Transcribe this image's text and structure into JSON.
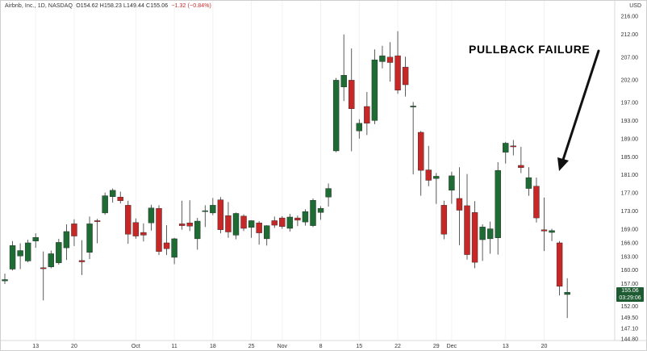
{
  "legend": {
    "symbol": "Airbnb, Inc., 1D, NASDAQ",
    "ohlc": "O154.62 H158.23 L149.44 C155.06",
    "change": "−1.32 (−0.84%)"
  },
  "currency": "USD",
  "annotation": {
    "text": "PULLBACK FAILURE"
  },
  "last_price": {
    "price": "155.06",
    "countdown": "03:29:06"
  },
  "colors": {
    "up": "#1e6b34",
    "down": "#c62828",
    "wick": "#333333",
    "badge": "#1e5b32",
    "axis_text": "#333333"
  },
  "chart_data": {
    "type": "candlestick",
    "title": "",
    "xlabel": "",
    "ylabel": "",
    "ylim": [
      144.8,
      218
    ],
    "y_ticks": [
      144.8,
      147.1,
      149.5,
      152.0,
      155.0,
      157.0,
      160.0,
      163.0,
      166.0,
      169.0,
      173.0,
      177.0,
      181.0,
      185.0,
      189.0,
      193.0,
      197.0,
      202.0,
      207.0,
      212.0,
      216.0
    ],
    "x_ticks": [
      {
        "label": "13",
        "index": 4
      },
      {
        "label": "20",
        "index": 9
      },
      {
        "label": "Oct",
        "index": 17
      },
      {
        "label": "11",
        "index": 22
      },
      {
        "label": "18",
        "index": 27
      },
      {
        "label": "25",
        "index": 32
      },
      {
        "label": "Nov",
        "index": 36
      },
      {
        "label": "8",
        "index": 41
      },
      {
        "label": "15",
        "index": 46
      },
      {
        "label": "22",
        "index": 51
      },
      {
        "label": "29",
        "index": 56
      },
      {
        "label": "Dec",
        "index": 58
      },
      {
        "label": "13",
        "index": 65
      },
      {
        "label": "20",
        "index": 70
      }
    ],
    "candles": [
      {
        "o": 157.6,
        "h": 159.2,
        "l": 156.9,
        "c": 157.9
      },
      {
        "o": 160.2,
        "h": 166.4,
        "l": 159.9,
        "c": 165.4
      },
      {
        "o": 163.1,
        "h": 165.9,
        "l": 160.2,
        "c": 164.3
      },
      {
        "o": 162.0,
        "h": 166.7,
        "l": 161.7,
        "c": 166.0
      },
      {
        "o": 166.4,
        "h": 168.1,
        "l": 164.9,
        "c": 167.2
      },
      {
        "o": 160.5,
        "h": 164.1,
        "l": 153.3,
        "c": 160.3
      },
      {
        "o": 160.7,
        "h": 164.3,
        "l": 160.4,
        "c": 163.6
      },
      {
        "o": 161.6,
        "h": 166.9,
        "l": 161.2,
        "c": 166.1
      },
      {
        "o": 164.9,
        "h": 170.1,
        "l": 162.2,
        "c": 168.5
      },
      {
        "o": 170.2,
        "h": 171.2,
        "l": 165.3,
        "c": 167.5
      },
      {
        "o": 162.1,
        "h": 166.6,
        "l": 158.9,
        "c": 161.8
      },
      {
        "o": 163.9,
        "h": 171.8,
        "l": 162.4,
        "c": 170.2
      },
      {
        "o": 170.9,
        "h": 171.3,
        "l": 165.9,
        "c": 170.7
      },
      {
        "o": 172.6,
        "h": 177.1,
        "l": 172.2,
        "c": 176.4
      },
      {
        "o": 176.2,
        "h": 178.0,
        "l": 174.9,
        "c": 177.6
      },
      {
        "o": 176.1,
        "h": 177.3,
        "l": 174.7,
        "c": 175.3
      },
      {
        "o": 174.3,
        "h": 175.3,
        "l": 165.8,
        "c": 167.9
      },
      {
        "o": 170.5,
        "h": 171.4,
        "l": 166.9,
        "c": 167.5
      },
      {
        "o": 168.3,
        "h": 170.3,
        "l": 166.3,
        "c": 167.7
      },
      {
        "o": 170.4,
        "h": 174.4,
        "l": 168.7,
        "c": 173.7
      },
      {
        "o": 173.6,
        "h": 174.3,
        "l": 163.3,
        "c": 164.1
      },
      {
        "o": 166.0,
        "h": 169.9,
        "l": 163.3,
        "c": 164.7
      },
      {
        "o": 162.8,
        "h": 167.1,
        "l": 161.3,
        "c": 166.9
      },
      {
        "o": 170.2,
        "h": 175.3,
        "l": 168.9,
        "c": 169.8
      },
      {
        "o": 170.4,
        "h": 175.4,
        "l": 168.6,
        "c": 169.7
      },
      {
        "o": 166.9,
        "h": 171.5,
        "l": 164.5,
        "c": 170.8
      },
      {
        "o": 173.0,
        "h": 174.3,
        "l": 169.5,
        "c": 173.1
      },
      {
        "o": 172.6,
        "h": 175.9,
        "l": 172.1,
        "c": 174.3
      },
      {
        "o": 175.5,
        "h": 176.1,
        "l": 168.1,
        "c": 168.9
      },
      {
        "o": 172.0,
        "h": 175.0,
        "l": 167.1,
        "c": 168.4
      },
      {
        "o": 167.7,
        "h": 172.7,
        "l": 166.8,
        "c": 172.5
      },
      {
        "o": 171.9,
        "h": 172.3,
        "l": 168.6,
        "c": 169.2
      },
      {
        "o": 169.4,
        "h": 171.0,
        "l": 167.1,
        "c": 170.9
      },
      {
        "o": 170.4,
        "h": 170.8,
        "l": 165.6,
        "c": 168.2
      },
      {
        "o": 166.9,
        "h": 169.9,
        "l": 165.4,
        "c": 169.8
      },
      {
        "o": 170.9,
        "h": 171.8,
        "l": 169.3,
        "c": 169.9
      },
      {
        "o": 171.5,
        "h": 171.9,
        "l": 169.1,
        "c": 169.6
      },
      {
        "o": 169.2,
        "h": 172.4,
        "l": 168.5,
        "c": 171.7
      },
      {
        "o": 171.5,
        "h": 172.0,
        "l": 169.7,
        "c": 171.0
      },
      {
        "o": 170.6,
        "h": 173.4,
        "l": 169.8,
        "c": 172.9
      },
      {
        "o": 169.8,
        "h": 175.8,
        "l": 169.5,
        "c": 175.4
      },
      {
        "o": 172.7,
        "h": 174.1,
        "l": 171.1,
        "c": 173.6
      },
      {
        "o": 176.1,
        "h": 179.1,
        "l": 174.0,
        "c": 178.0
      },
      {
        "o": 186.3,
        "h": 202.4,
        "l": 186.0,
        "c": 201.9
      },
      {
        "o": 200.4,
        "h": 212.0,
        "l": 197.3,
        "c": 203.0
      },
      {
        "o": 201.9,
        "h": 208.9,
        "l": 186.2,
        "c": 195.6
      },
      {
        "o": 190.7,
        "h": 193.3,
        "l": 189.0,
        "c": 192.4
      },
      {
        "o": 196.1,
        "h": 199.3,
        "l": 189.8,
        "c": 192.4
      },
      {
        "o": 193.0,
        "h": 208.7,
        "l": 192.2,
        "c": 206.4
      },
      {
        "o": 206.0,
        "h": 209.5,
        "l": 204.5,
        "c": 207.3
      },
      {
        "o": 207.0,
        "h": 210.3,
        "l": 201.6,
        "c": 205.8
      },
      {
        "o": 207.3,
        "h": 212.7,
        "l": 198.9,
        "c": 199.7
      },
      {
        "o": 204.8,
        "h": 207.1,
        "l": 198.3,
        "c": 200.9
      },
      {
        "o": 196.1,
        "h": 197.1,
        "l": 181.1,
        "c": 196.2
      },
      {
        "o": 190.4,
        "h": 190.7,
        "l": 176.4,
        "c": 182.0
      },
      {
        "o": 182.1,
        "h": 187.4,
        "l": 178.5,
        "c": 179.8
      },
      {
        "o": 180.2,
        "h": 181.4,
        "l": 174.6,
        "c": 180.7
      },
      {
        "o": 174.3,
        "h": 175.3,
        "l": 166.8,
        "c": 167.9
      },
      {
        "o": 177.6,
        "h": 181.7,
        "l": 174.6,
        "c": 180.8
      },
      {
        "o": 175.8,
        "h": 182.7,
        "l": 165.5,
        "c": 173.2
      },
      {
        "o": 174.2,
        "h": 181.2,
        "l": 162.3,
        "c": 163.4
      },
      {
        "o": 172.7,
        "h": 175.2,
        "l": 160.4,
        "c": 161.7
      },
      {
        "o": 166.7,
        "h": 170.1,
        "l": 162.0,
        "c": 169.5
      },
      {
        "o": 166.9,
        "h": 170.7,
        "l": 163.6,
        "c": 169.1
      },
      {
        "o": 167.1,
        "h": 183.8,
        "l": 163.4,
        "c": 182.0
      },
      {
        "o": 186.0,
        "h": 188.3,
        "l": 183.5,
        "c": 188.0
      },
      {
        "o": 187.4,
        "h": 188.7,
        "l": 185.3,
        "c": 187.3
      },
      {
        "o": 183.1,
        "h": 187.2,
        "l": 181.4,
        "c": 182.6
      },
      {
        "o": 178.0,
        "h": 182.7,
        "l": 176.4,
        "c": 180.4
      },
      {
        "o": 178.5,
        "h": 180.4,
        "l": 170.5,
        "c": 171.5
      },
      {
        "o": 168.9,
        "h": 176.0,
        "l": 164.2,
        "c": 168.6
      },
      {
        "o": 168.3,
        "h": 169.1,
        "l": 166.4,
        "c": 168.7
      },
      {
        "o": 166.0,
        "h": 166.4,
        "l": 154.4,
        "c": 156.4
      },
      {
        "o": 154.6,
        "h": 158.2,
        "l": 149.4,
        "c": 155.1
      }
    ]
  }
}
